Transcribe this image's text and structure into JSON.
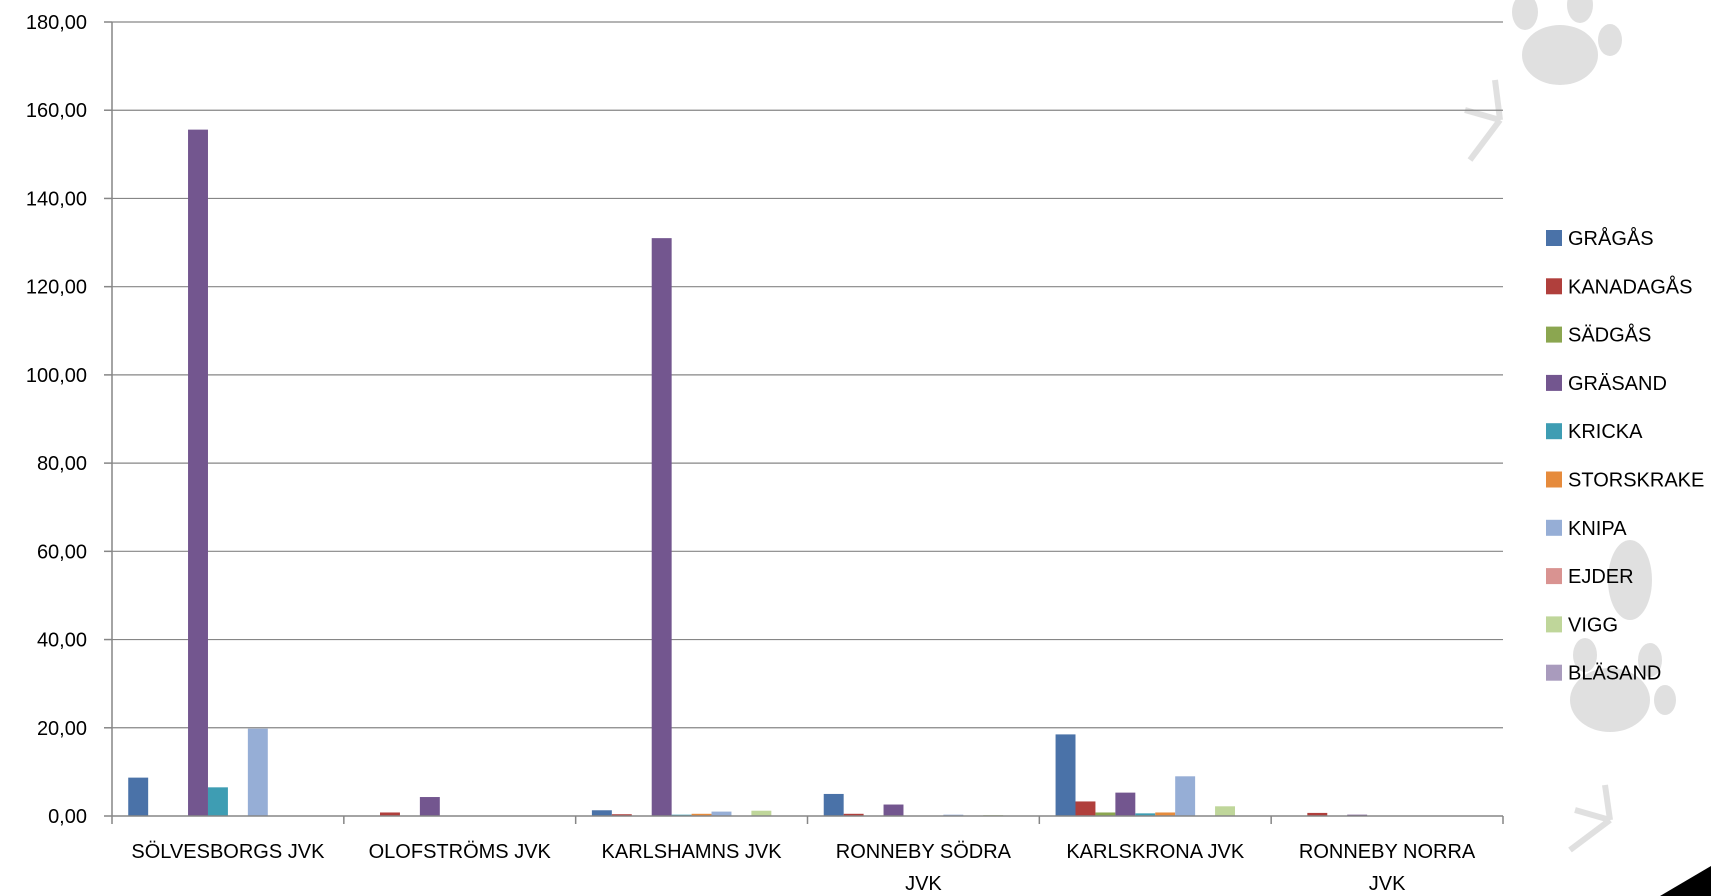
{
  "chart_data": {
    "type": "bar",
    "categories": [
      [
        "SÖLVESBORGS JVK"
      ],
      [
        "OLOFSTRÖMS JVK"
      ],
      [
        "KARLSHAMNS JVK"
      ],
      [
        "RONNEBY SÖDRA",
        "JVK"
      ],
      [
        "KARLSKRONA JVK"
      ],
      [
        "RONNEBY NORRA",
        "JVK"
      ]
    ],
    "ylim": [
      0,
      180
    ],
    "yticks": [
      "0,00",
      "20,00",
      "40,00",
      "60,00",
      "80,00",
      "100,00",
      "120,00",
      "140,00",
      "160,00",
      "180,00"
    ],
    "grid": true,
    "legend_position": "right",
    "series": [
      {
        "name": "GRÅGÅS",
        "color": "#4a72a8",
        "values": [
          8.7,
          0,
          1.3,
          5.0,
          18.5,
          0
        ]
      },
      {
        "name": "KANADAGÅS",
        "color": "#b03f3c",
        "values": [
          0,
          0.8,
          0.4,
          0.5,
          3.3,
          0.7
        ]
      },
      {
        "name": "SÄDGÅS",
        "color": "#8ba650",
        "values": [
          0,
          0,
          0,
          0,
          0.8,
          0
        ]
      },
      {
        "name": "GRÄSAND",
        "color": "#73568f",
        "values": [
          155.6,
          4.3,
          131.0,
          2.6,
          5.3,
          0.3
        ]
      },
      {
        "name": "KRICKA",
        "color": "#3e9db3",
        "values": [
          6.5,
          0,
          0.3,
          0,
          0.6,
          0
        ]
      },
      {
        "name": "STORSKRAKE",
        "color": "#e68b3c",
        "values": [
          0,
          0,
          0.5,
          0,
          0.8,
          0
        ]
      },
      {
        "name": "KNIPA",
        "color": "#96aed6",
        "values": [
          19.8,
          0,
          1.0,
          0.3,
          9.0,
          0
        ]
      },
      {
        "name": "EJDER",
        "color": "#d99391",
        "values": [
          0,
          0,
          0,
          0,
          0,
          0
        ]
      },
      {
        "name": "VIGG",
        "color": "#bfd69a",
        "values": [
          0,
          0,
          1.2,
          0.2,
          2.2,
          0
        ]
      },
      {
        "name": "BLÄSAND",
        "color": "#a99bbd",
        "values": [
          0,
          0,
          0,
          0,
          0,
          0
        ]
      }
    ]
  }
}
